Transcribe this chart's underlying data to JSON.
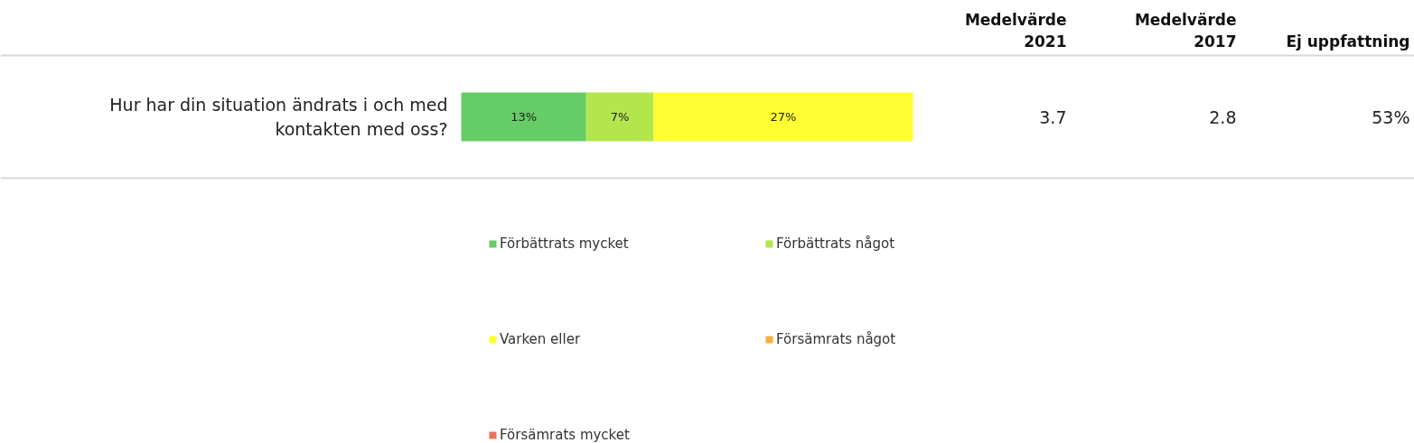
{
  "chart_data": {
    "type": "bar",
    "orientation": "horizontal",
    "stacked": true,
    "categories": [
      "Hur har din situation ändrats i och med kontakten med oss?"
    ],
    "xlim": [
      0,
      47
    ],
    "tick_labels": false,
    "grid": false,
    "legend": "bottom",
    "series": [
      {
        "name": "Förbättrats mycket",
        "color": "#66cc66",
        "values": [
          13
        ],
        "value_labels": [
          "13%"
        ]
      },
      {
        "name": "Förbättrats något",
        "color": "#b3e64d",
        "values": [
          7
        ],
        "value_labels": [
          "7%"
        ]
      },
      {
        "name": "Varken eller",
        "color": "#ffff33",
        "values": [
          27
        ],
        "value_labels": [
          "27%"
        ]
      },
      {
        "name": "Försämrats något",
        "color": "#f5b041",
        "values": [
          0
        ],
        "value_labels": [
          null
        ]
      },
      {
        "name": "Försämrats mycket",
        "color": "#e8735a",
        "values": [
          0
        ],
        "value_labels": [
          null
        ]
      }
    ],
    "annotations": [
      "Medelvärde\n2021",
      "Medelvärde\n2017",
      "Ej uppfattning",
      "3.7",
      "2.8",
      "53%"
    ]
  }
}
